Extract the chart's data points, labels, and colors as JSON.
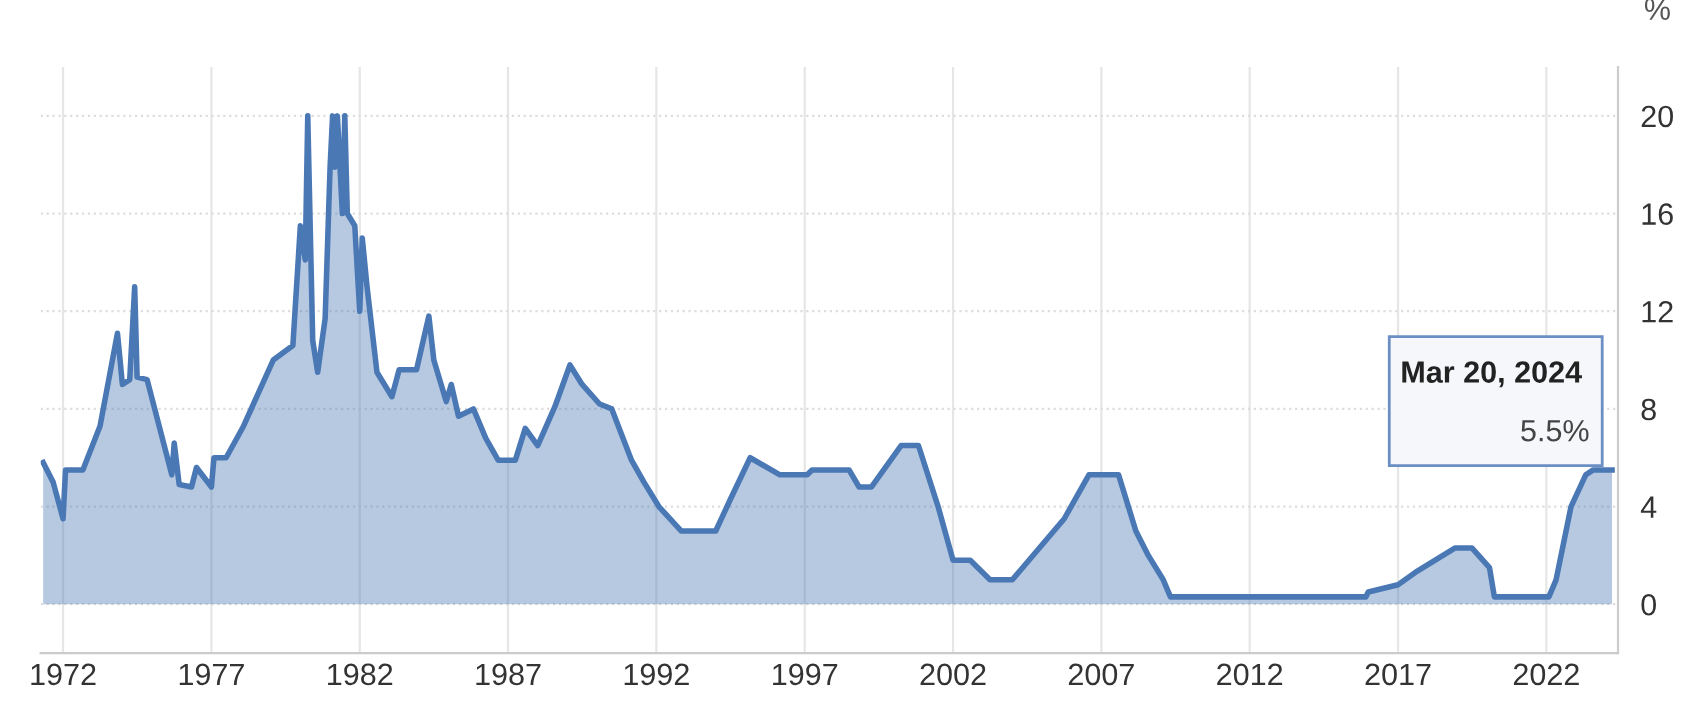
{
  "chart_data": {
    "type": "area",
    "ylabel": "%",
    "x": [
      "1971-05",
      "1971-09",
      "1972-01",
      "1972-02",
      "1972-09",
      "1973-04",
      "1973-11",
      "1974-01",
      "1974-04",
      "1974-06",
      "1974-07",
      "1974-11",
      "1975-09",
      "1975-10",
      "1975-12",
      "1976-05",
      "1976-07",
      "1977-01",
      "1977-02",
      "1977-07",
      "1978-02",
      "1979-02",
      "1979-10",
      "1980-01",
      "1980-03",
      "1980-04",
      "1980-06",
      "1980-08",
      "1980-11",
      "1981-01",
      "1981-02",
      "1981-03",
      "1981-04",
      "1981-06",
      "1981-07",
      "1981-08",
      "1981-11",
      "1982-01",
      "1982-02",
      "1982-04",
      "1982-08",
      "1983-02",
      "1983-05",
      "1983-12",
      "1984-05",
      "1984-07",
      "1984-12",
      "1985-02",
      "1985-05",
      "1985-11",
      "1986-04",
      "1986-09",
      "1987-04",
      "1987-08",
      "1988-01",
      "1988-08",
      "1989-02",
      "1989-07",
      "1990-02",
      "1990-07",
      "1991-03",
      "1991-08",
      "1992-02",
      "1992-11",
      "1994-01",
      "1994-07",
      "1995-03",
      "1996-03",
      "1997-02",
      "1997-04",
      "1998-07",
      "1998-11",
      "1999-04",
      "2000-04",
      "2000-11",
      "2001-07",
      "2002-01",
      "2002-08",
      "2003-04",
      "2004-01",
      "2005-10",
      "2006-08",
      "2007-08",
      "2008-03",
      "2008-08",
      "2009-02",
      "2009-05",
      "2015-12",
      "2016-01",
      "2017-01",
      "2017-08",
      "2018-12",
      "2019-07",
      "2020-02",
      "2020-04",
      "2022-02",
      "2022-05",
      "2022-11",
      "2023-05",
      "2023-08",
      "2024-03-20"
    ],
    "series": [
      {
        "color": "#4a78b5",
        "values": [
          5.8,
          5.0,
          3.5,
          5.5,
          5.5,
          7.3,
          11.1,
          9.0,
          9.2,
          13.0,
          9.3,
          9.2,
          5.3,
          6.6,
          4.9,
          4.8,
          5.6,
          4.8,
          6.0,
          6.0,
          7.3,
          10.0,
          10.6,
          15.5,
          14.1,
          20,
          10.8,
          9.5,
          11.7,
          17.9,
          20,
          17.9,
          20,
          16,
          20,
          16,
          15.5,
          12,
          15,
          13,
          9.5,
          8.5,
          9.6,
          9.6,
          11.8,
          10.0,
          8.3,
          9.0,
          7.7,
          8.0,
          6.8,
          5.9,
          5.9,
          7.2,
          6.5,
          8.1,
          9.8,
          9.0,
          8.2,
          8.0,
          5.9,
          5.0,
          4.0,
          3.0,
          3.0,
          4.3,
          6.0,
          5.3,
          5.3,
          5.5,
          5.5,
          4.8,
          4.8,
          6.5,
          6.5,
          4.0,
          1.8,
          1.8,
          1.0,
          1.0,
          3.5,
          5.3,
          5.3,
          3.0,
          2.0,
          1.0,
          0.3,
          0.3,
          0.5,
          0.8,
          1.3,
          2.3,
          2.3,
          1.5,
          0.3,
          0.3,
          1.0,
          4.0,
          5.3,
          5.5,
          5.5
        ]
      }
    ],
    "xlim": [
      "1971-04",
      "2024-06"
    ],
    "xticks": [
      "1972",
      "1977",
      "1982",
      "1987",
      "1992",
      "1997",
      "2002",
      "2007",
      "2012",
      "2017",
      "2022"
    ],
    "ylim": [
      -2,
      22
    ],
    "yticks": [
      0,
      4,
      8,
      12,
      16,
      20
    ],
    "grid": true,
    "annotations": [
      "Mar 20, 2024",
      "5.5%"
    ]
  }
}
